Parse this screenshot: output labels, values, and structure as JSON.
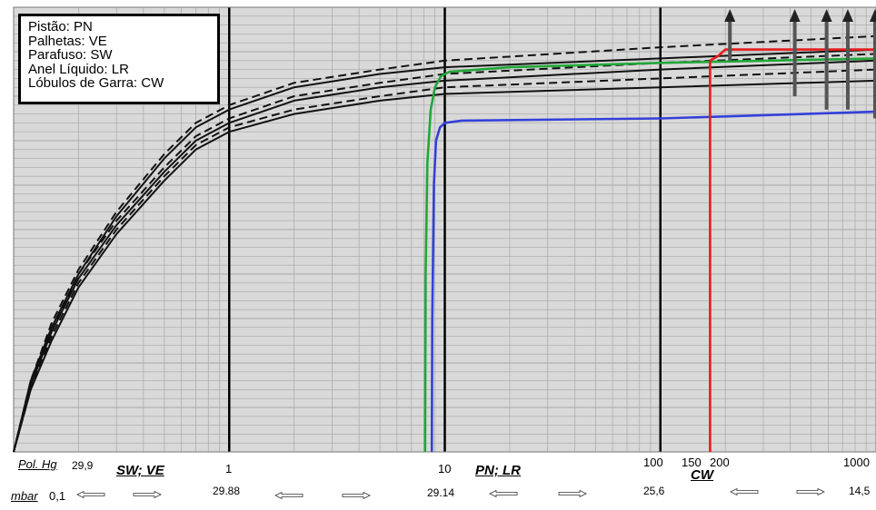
{
  "chart_data": {
    "type": "line",
    "x_scale": "log",
    "xlim": [
      0.1,
      1000
    ],
    "grid": true,
    "legend_position": "top-left",
    "colors": {
      "background": "#d9d9d9",
      "grid": "#a8a8a8",
      "black": "#111111",
      "green": "#22a63a",
      "blue": "#3340d9",
      "red": "#e51c1c",
      "arrow": "#555555"
    },
    "legend": [
      "Pistão: PN",
      "Palhetas: VE",
      "Parafuso: SW",
      "Anel Líquido: LR",
      "Lóbulos de Garra: CW"
    ],
    "x_ticks_top": [
      {
        "x": 1,
        "label": "1"
      },
      {
        "x": 10,
        "label": "10"
      },
      {
        "x": 100,
        "label": "100"
      },
      {
        "x": 150,
        "label": "150"
      },
      {
        "x": 200,
        "label": "200"
      },
      {
        "x": 1000,
        "label": "1000"
      }
    ],
    "pol_hg": {
      "label": "Pol. Hg",
      "values": [
        "29,9"
      ]
    },
    "mbar": {
      "label": "mbar",
      "values": [
        {
          "x": 0.1,
          "label": "0,1"
        },
        {
          "x": 1,
          "label": "29.88"
        },
        {
          "x": 10,
          "label": "29.14"
        },
        {
          "x": 100,
          "label": "25,6"
        },
        {
          "x": 1000,
          "label": "14,5"
        }
      ]
    },
    "region_labels": [
      {
        "x": 0.25,
        "label": "SW; VE"
      },
      {
        "x": 2.6,
        "label": "PN; LR"
      },
      {
        "x": 180,
        "label": "CW"
      }
    ],
    "series": [
      {
        "style": "solid",
        "color": "black",
        "pairs": [
          [
            0.1,
            0
          ],
          [
            0.12,
            16
          ],
          [
            0.15,
            28
          ],
          [
            0.2,
            40
          ],
          [
            0.3,
            53
          ],
          [
            0.5,
            66
          ],
          [
            0.7,
            73
          ],
          [
            1,
            77
          ],
          [
            2,
            82
          ],
          [
            5,
            85
          ],
          [
            10,
            86.5
          ],
          [
            100,
            88.5
          ],
          [
            1000,
            90.5
          ]
        ]
      },
      {
        "style": "solid",
        "color": "black",
        "pairs": [
          [
            0.1,
            0
          ],
          [
            0.12,
            15
          ],
          [
            0.15,
            27
          ],
          [
            0.2,
            39
          ],
          [
            0.3,
            51
          ],
          [
            0.5,
            63
          ],
          [
            0.7,
            70
          ],
          [
            1,
            74
          ],
          [
            2,
            79
          ],
          [
            5,
            82
          ],
          [
            10,
            83.5
          ],
          [
            100,
            86
          ],
          [
            1000,
            88
          ]
        ]
      },
      {
        "style": "solid",
        "color": "black",
        "pairs": [
          [
            0.1,
            0
          ],
          [
            0.12,
            14
          ],
          [
            0.15,
            25
          ],
          [
            0.2,
            37
          ],
          [
            0.3,
            49
          ],
          [
            0.5,
            61
          ],
          [
            0.7,
            68
          ],
          [
            1,
            72
          ],
          [
            2,
            76
          ],
          [
            5,
            79
          ],
          [
            10,
            80.5
          ],
          [
            100,
            82
          ],
          [
            1000,
            83.5
          ]
        ]
      },
      {
        "style": "dashed",
        "color": "black",
        "pairs": [
          [
            0.1,
            0
          ],
          [
            0.12,
            16
          ],
          [
            0.15,
            29
          ],
          [
            0.2,
            41
          ],
          [
            0.3,
            54
          ],
          [
            0.5,
            67
          ],
          [
            0.7,
            74
          ],
          [
            1,
            78
          ],
          [
            2,
            83
          ],
          [
            5,
            86
          ],
          [
            10,
            88
          ],
          [
            100,
            91
          ],
          [
            1000,
            93.5
          ]
        ]
      },
      {
        "style": "dashed",
        "color": "black",
        "pairs": [
          [
            0.1,
            0
          ],
          [
            0.12,
            15
          ],
          [
            0.15,
            27
          ],
          [
            0.2,
            40
          ],
          [
            0.3,
            52
          ],
          [
            0.5,
            64
          ],
          [
            0.7,
            71
          ],
          [
            1,
            75
          ],
          [
            2,
            80
          ],
          [
            5,
            83
          ],
          [
            10,
            85
          ],
          [
            100,
            87.5
          ],
          [
            1000,
            89.5
          ]
        ]
      },
      {
        "style": "dashed",
        "color": "black",
        "pairs": [
          [
            0.1,
            0
          ],
          [
            0.12,
            14
          ],
          [
            0.15,
            26
          ],
          [
            0.2,
            38
          ],
          [
            0.3,
            50
          ],
          [
            0.5,
            62
          ],
          [
            0.7,
            69
          ],
          [
            1,
            73
          ],
          [
            2,
            77
          ],
          [
            5,
            80
          ],
          [
            10,
            82
          ],
          [
            100,
            84
          ],
          [
            1000,
            86
          ]
        ]
      },
      {
        "style": "solid",
        "color": "green",
        "pairs": [
          [
            8.1,
            0
          ],
          [
            8.15,
            40
          ],
          [
            8.3,
            65
          ],
          [
            8.6,
            77
          ],
          [
            9,
            82
          ],
          [
            9.6,
            84.5
          ],
          [
            10.5,
            85.5
          ],
          [
            20,
            86.5
          ],
          [
            100,
            87.5
          ],
          [
            1000,
            88.5
          ]
        ]
      },
      {
        "style": "solid",
        "color": "blue",
        "pairs": [
          [
            8.7,
            0
          ],
          [
            8.75,
            30
          ],
          [
            8.9,
            60
          ],
          [
            9.1,
            70
          ],
          [
            9.5,
            73
          ],
          [
            10,
            74
          ],
          [
            12,
            74.5
          ],
          [
            100,
            75
          ],
          [
            1000,
            76.5
          ]
        ]
      },
      {
        "style": "solid",
        "color": "red",
        "pairs": [
          [
            170,
            0
          ],
          [
            170,
            88
          ],
          [
            185,
            89
          ],
          [
            200,
            90.5
          ],
          [
            1000,
            90.5
          ]
        ]
      }
    ],
    "arrows": [
      {
        "x": 210,
        "y_from": 88,
        "y_to": 100
      },
      {
        "x": 420,
        "y_from": 80,
        "y_to": 100
      },
      {
        "x": 590,
        "y_from": 77,
        "y_to": 100
      },
      {
        "x": 740,
        "y_from": 77,
        "y_to": 100
      },
      {
        "x": 990,
        "y_from": 75,
        "y_to": 100
      }
    ]
  }
}
